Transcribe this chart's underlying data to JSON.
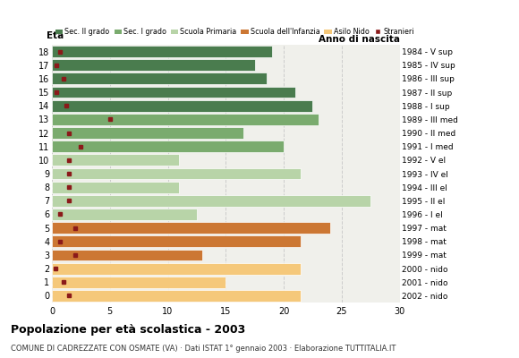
{
  "ages": [
    18,
    17,
    16,
    15,
    14,
    13,
    12,
    11,
    10,
    9,
    8,
    7,
    6,
    5,
    4,
    3,
    2,
    1,
    0
  ],
  "birth_years": [
    "1984 - V sup",
    "1985 - IV sup",
    "1986 - III sup",
    "1987 - II sup",
    "1988 - I sup",
    "1989 - III med",
    "1990 - II med",
    "1991 - I med",
    "1992 - V el",
    "1993 - IV el",
    "1994 - III el",
    "1995 - II el",
    "1996 - I el",
    "1997 - mat",
    "1998 - mat",
    "1999 - mat",
    "2000 - nido",
    "2001 - nido",
    "2002 - nido"
  ],
  "bar_values": [
    19,
    17.5,
    18.5,
    21,
    22.5,
    23,
    16.5,
    20,
    11,
    21.5,
    11,
    27.5,
    12.5,
    24,
    21.5,
    13,
    21.5,
    15,
    21.5
  ],
  "stranieri": [
    0.7,
    0.4,
    1.0,
    0.4,
    1.2,
    5.0,
    1.5,
    2.5,
    1.5,
    1.5,
    1.5,
    1.5,
    0.7,
    2.0,
    0.7,
    2.0,
    0.3,
    1.0,
    1.5
  ],
  "colors": {
    "Sec. II grado": "#4a7c4e",
    "Sec. I grado": "#7aab6e",
    "Scuola Primaria": "#b8d4a8",
    "Scuola dell'Infanzia": "#cc7733",
    "Asilo Nido": "#f5c87a",
    "Stranieri": "#8b1a1a"
  },
  "age_category": {
    "18": "Sec. II grado",
    "17": "Sec. II grado",
    "16": "Sec. II grado",
    "15": "Sec. II grado",
    "14": "Sec. II grado",
    "13": "Sec. I grado",
    "12": "Sec. I grado",
    "11": "Sec. I grado",
    "10": "Scuola Primaria",
    "9": "Scuola Primaria",
    "8": "Scuola Primaria",
    "7": "Scuola Primaria",
    "6": "Scuola Primaria",
    "5": "Scuola dell'Infanzia",
    "4": "Scuola dell'Infanzia",
    "3": "Scuola dell'Infanzia",
    "2": "Asilo Nido",
    "1": "Asilo Nido",
    "0": "Asilo Nido"
  },
  "title": "Popolazione per età scolastica - 2003",
  "subtitle": "COMUNE DI CADREZZATE CON OSMATE (VA) · Dati ISTAT 1° gennaio 2003 · Elaborazione TUTTITALIA.IT",
  "ylabel_eta": "Età",
  "ylabel_anno": "Anno di nascita",
  "xlim": [
    0,
    30
  ],
  "xticks": [
    0,
    5,
    10,
    15,
    20,
    25,
    30
  ],
  "background_color": "#ffffff",
  "plot_bg_color": "#f0f0eb",
  "grid_color": "#cccccc"
}
